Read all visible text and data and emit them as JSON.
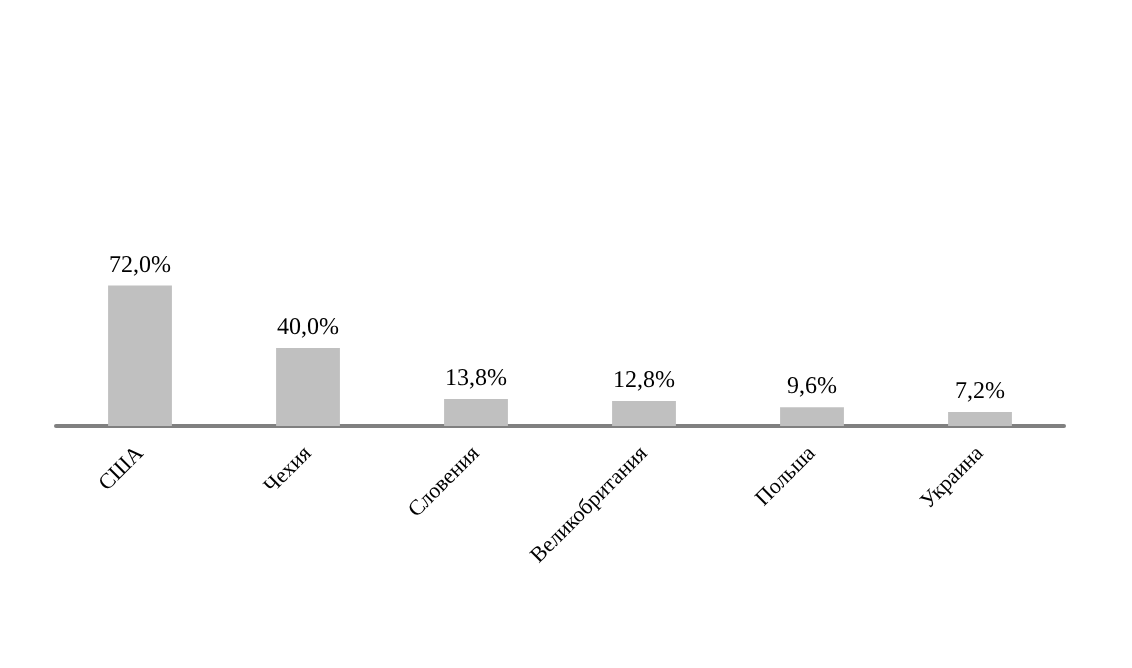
{
  "chart_data": {
    "type": "bar",
    "categories": [
      "США",
      "Чехия",
      "Словения",
      "Великобритания",
      "Польша",
      "Украина"
    ],
    "values": [
      72.0,
      40.0,
      13.8,
      12.8,
      9.6,
      7.2
    ],
    "value_labels": [
      "72,0%",
      "40,0%",
      "13,8%",
      "12,8%",
      "9,6%",
      "7,2%"
    ],
    "color": "#c0c0c0"
  }
}
